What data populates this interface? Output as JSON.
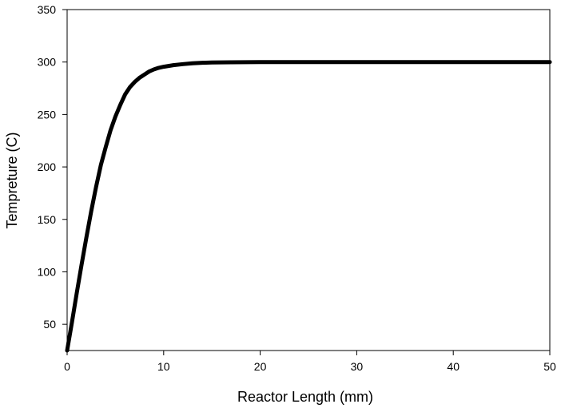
{
  "chart_data": {
    "type": "line",
    "xlabel": "Reactor Length (mm)",
    "ylabel": "Tempreture (C)",
    "xlim": [
      0,
      50
    ],
    "ylim": [
      25,
      350
    ],
    "xticks": [
      0,
      10,
      20,
      30,
      40,
      50
    ],
    "yticks": [
      50,
      100,
      150,
      200,
      250,
      300,
      350
    ],
    "grid": false,
    "legend": "none",
    "series": [
      {
        "color": "#000000",
        "x": [
          0,
          0.5,
          1,
          1.5,
          2,
          2.5,
          3,
          3.5,
          4,
          4.5,
          5,
          5.5,
          6,
          6.5,
          7,
          7.5,
          8,
          8.5,
          9,
          9.5,
          10,
          11,
          12,
          13,
          14,
          15,
          17,
          20,
          25,
          30,
          35,
          40,
          45,
          50
        ],
        "y": [
          25,
          52,
          80,
          107,
          133,
          158,
          181,
          202,
          219,
          235,
          248,
          259,
          269,
          276,
          281,
          285,
          288,
          291,
          293,
          294.5,
          295.5,
          297,
          298,
          298.8,
          299.3,
          299.6,
          299.8,
          300,
          300,
          300,
          300,
          300,
          300,
          300
        ]
      }
    ]
  }
}
